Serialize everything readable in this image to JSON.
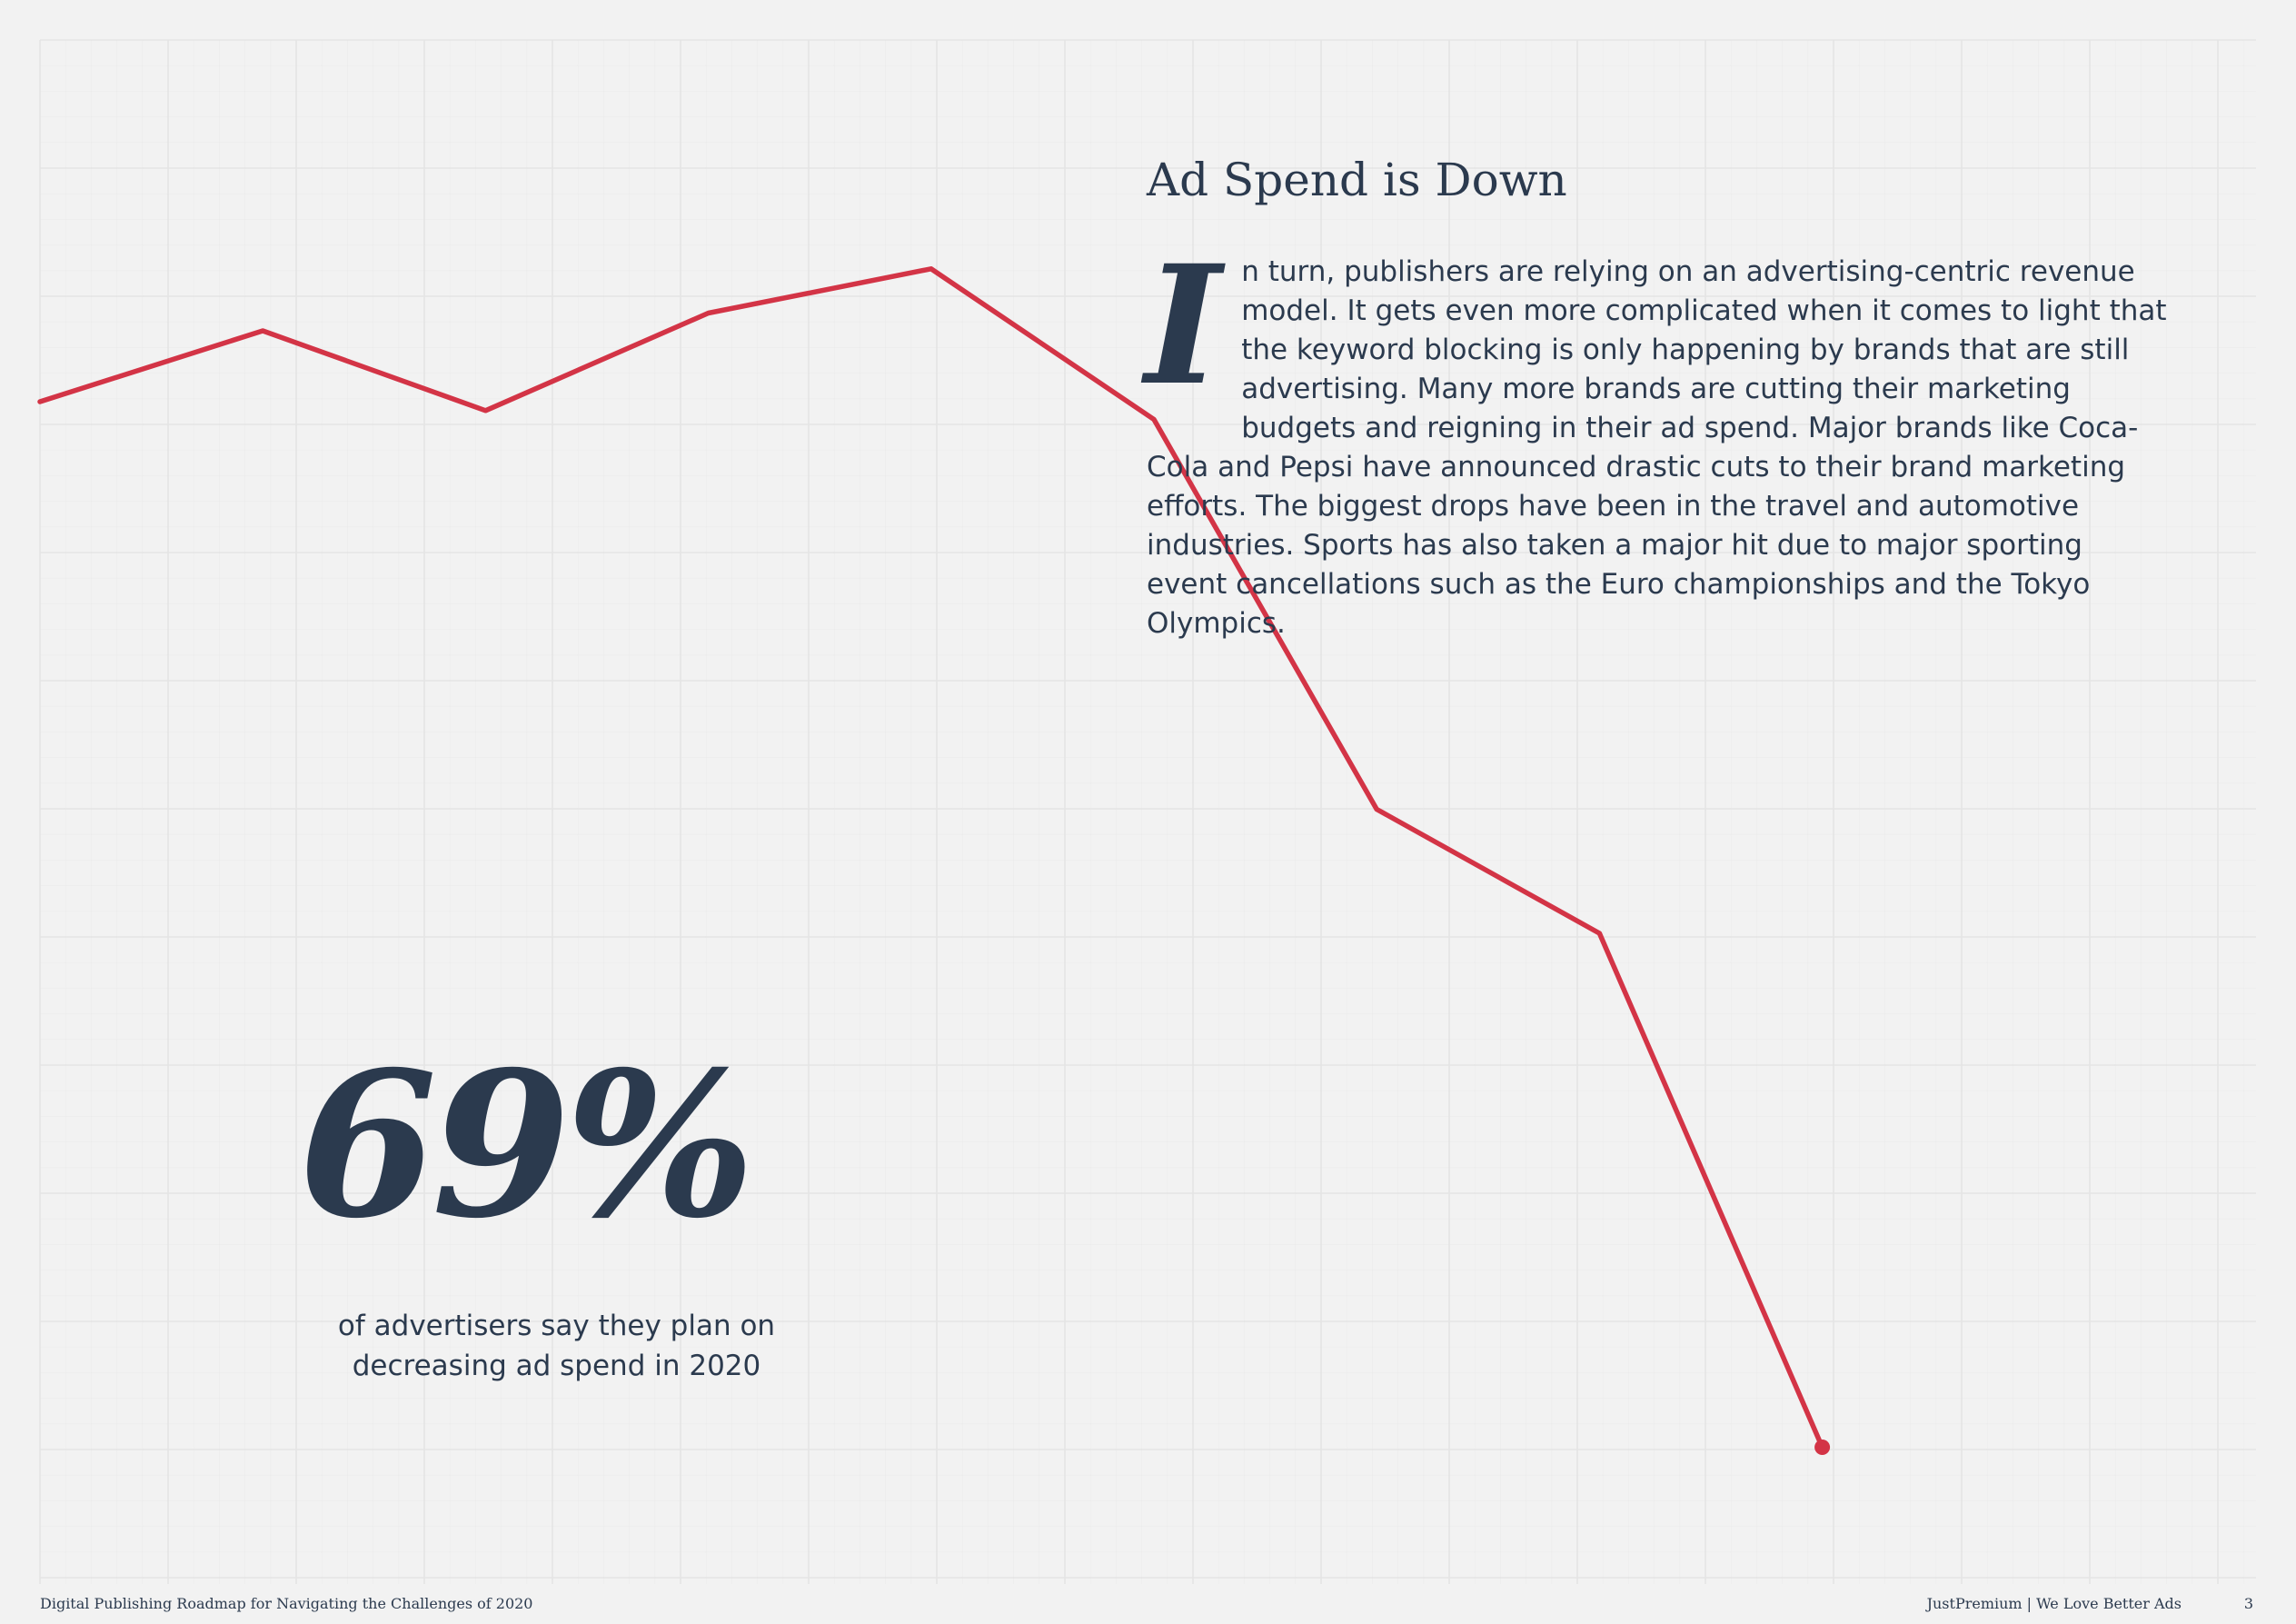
{
  "heading": "Ad Spend is Down",
  "body": {
    "drop_cap": "I",
    "text": "n turn, publishers are relying on an advertising-centric revenue model. It gets even more complicated when it comes to light that the keyword blocking is only happening by brands that are still advertising. Many more brands are cutting their marketing budgets and reigning in their ad spend. Major brands like Coca-Cola and Pepsi have announced drastic cuts to their brand marketing efforts. The biggest drops have been in the travel and automotive industries. Sports has also taken a major hit due to major sporting event cancellations such as the Euro championships and the Tokyo Olympics."
  },
  "stat": {
    "value": "69%",
    "caption": "of advertisers say they plan on decreasing ad spend in 2020"
  },
  "footer": {
    "left": "Digital Publishing Roadmap for Navigating the Challenges of 2020",
    "right": "JustPremium | We Love Better Ads",
    "page_number": "3"
  },
  "colors": {
    "background": "#f2f2f2",
    "text": "#2b3a4e",
    "line": "#d33446",
    "grid": "#e4e4e4"
  },
  "chart_data": {
    "type": "line",
    "title": "",
    "xlabel": "",
    "ylabel": "",
    "grid": true,
    "values": [
      80,
      84,
      79.5,
      85,
      87.5,
      79,
      57,
      50,
      21
    ],
    "ylim": [
      0,
      100
    ]
  }
}
